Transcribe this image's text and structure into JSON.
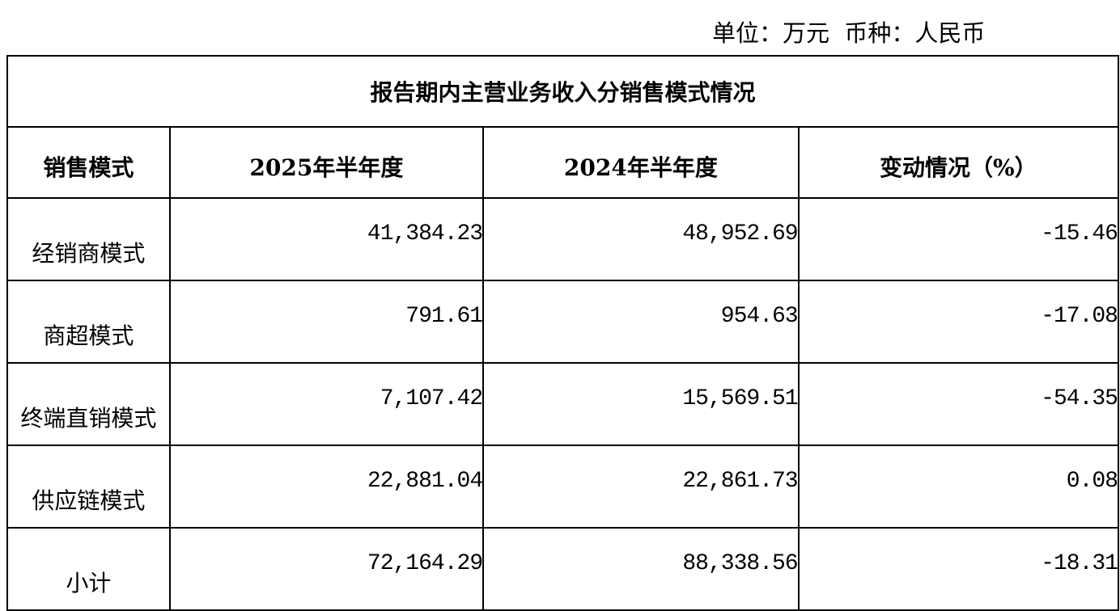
{
  "unit_line": "单位：万元  币种：人民币",
  "table": {
    "title": "报告期内主营业务收入分销售模式情况",
    "headers": [
      "销售模式",
      "2025年半年度",
      "2024年半年度",
      "变动情况（%）"
    ],
    "rows": [
      [
        "经销商模式",
        "41,384.23",
        "48,952.69",
        "-15.46"
      ],
      [
        "商超模式",
        "791.61",
        "954.63",
        "-17.08"
      ],
      [
        "终端直销模式",
        "7,107.42",
        "15,569.51",
        "-54.35"
      ],
      [
        "供应链模式",
        "22,881.04",
        "22,861.73",
        "0.08"
      ],
      [
        "小计",
        "72,164.29",
        "88,338.56",
        "-18.31"
      ]
    ]
  }
}
